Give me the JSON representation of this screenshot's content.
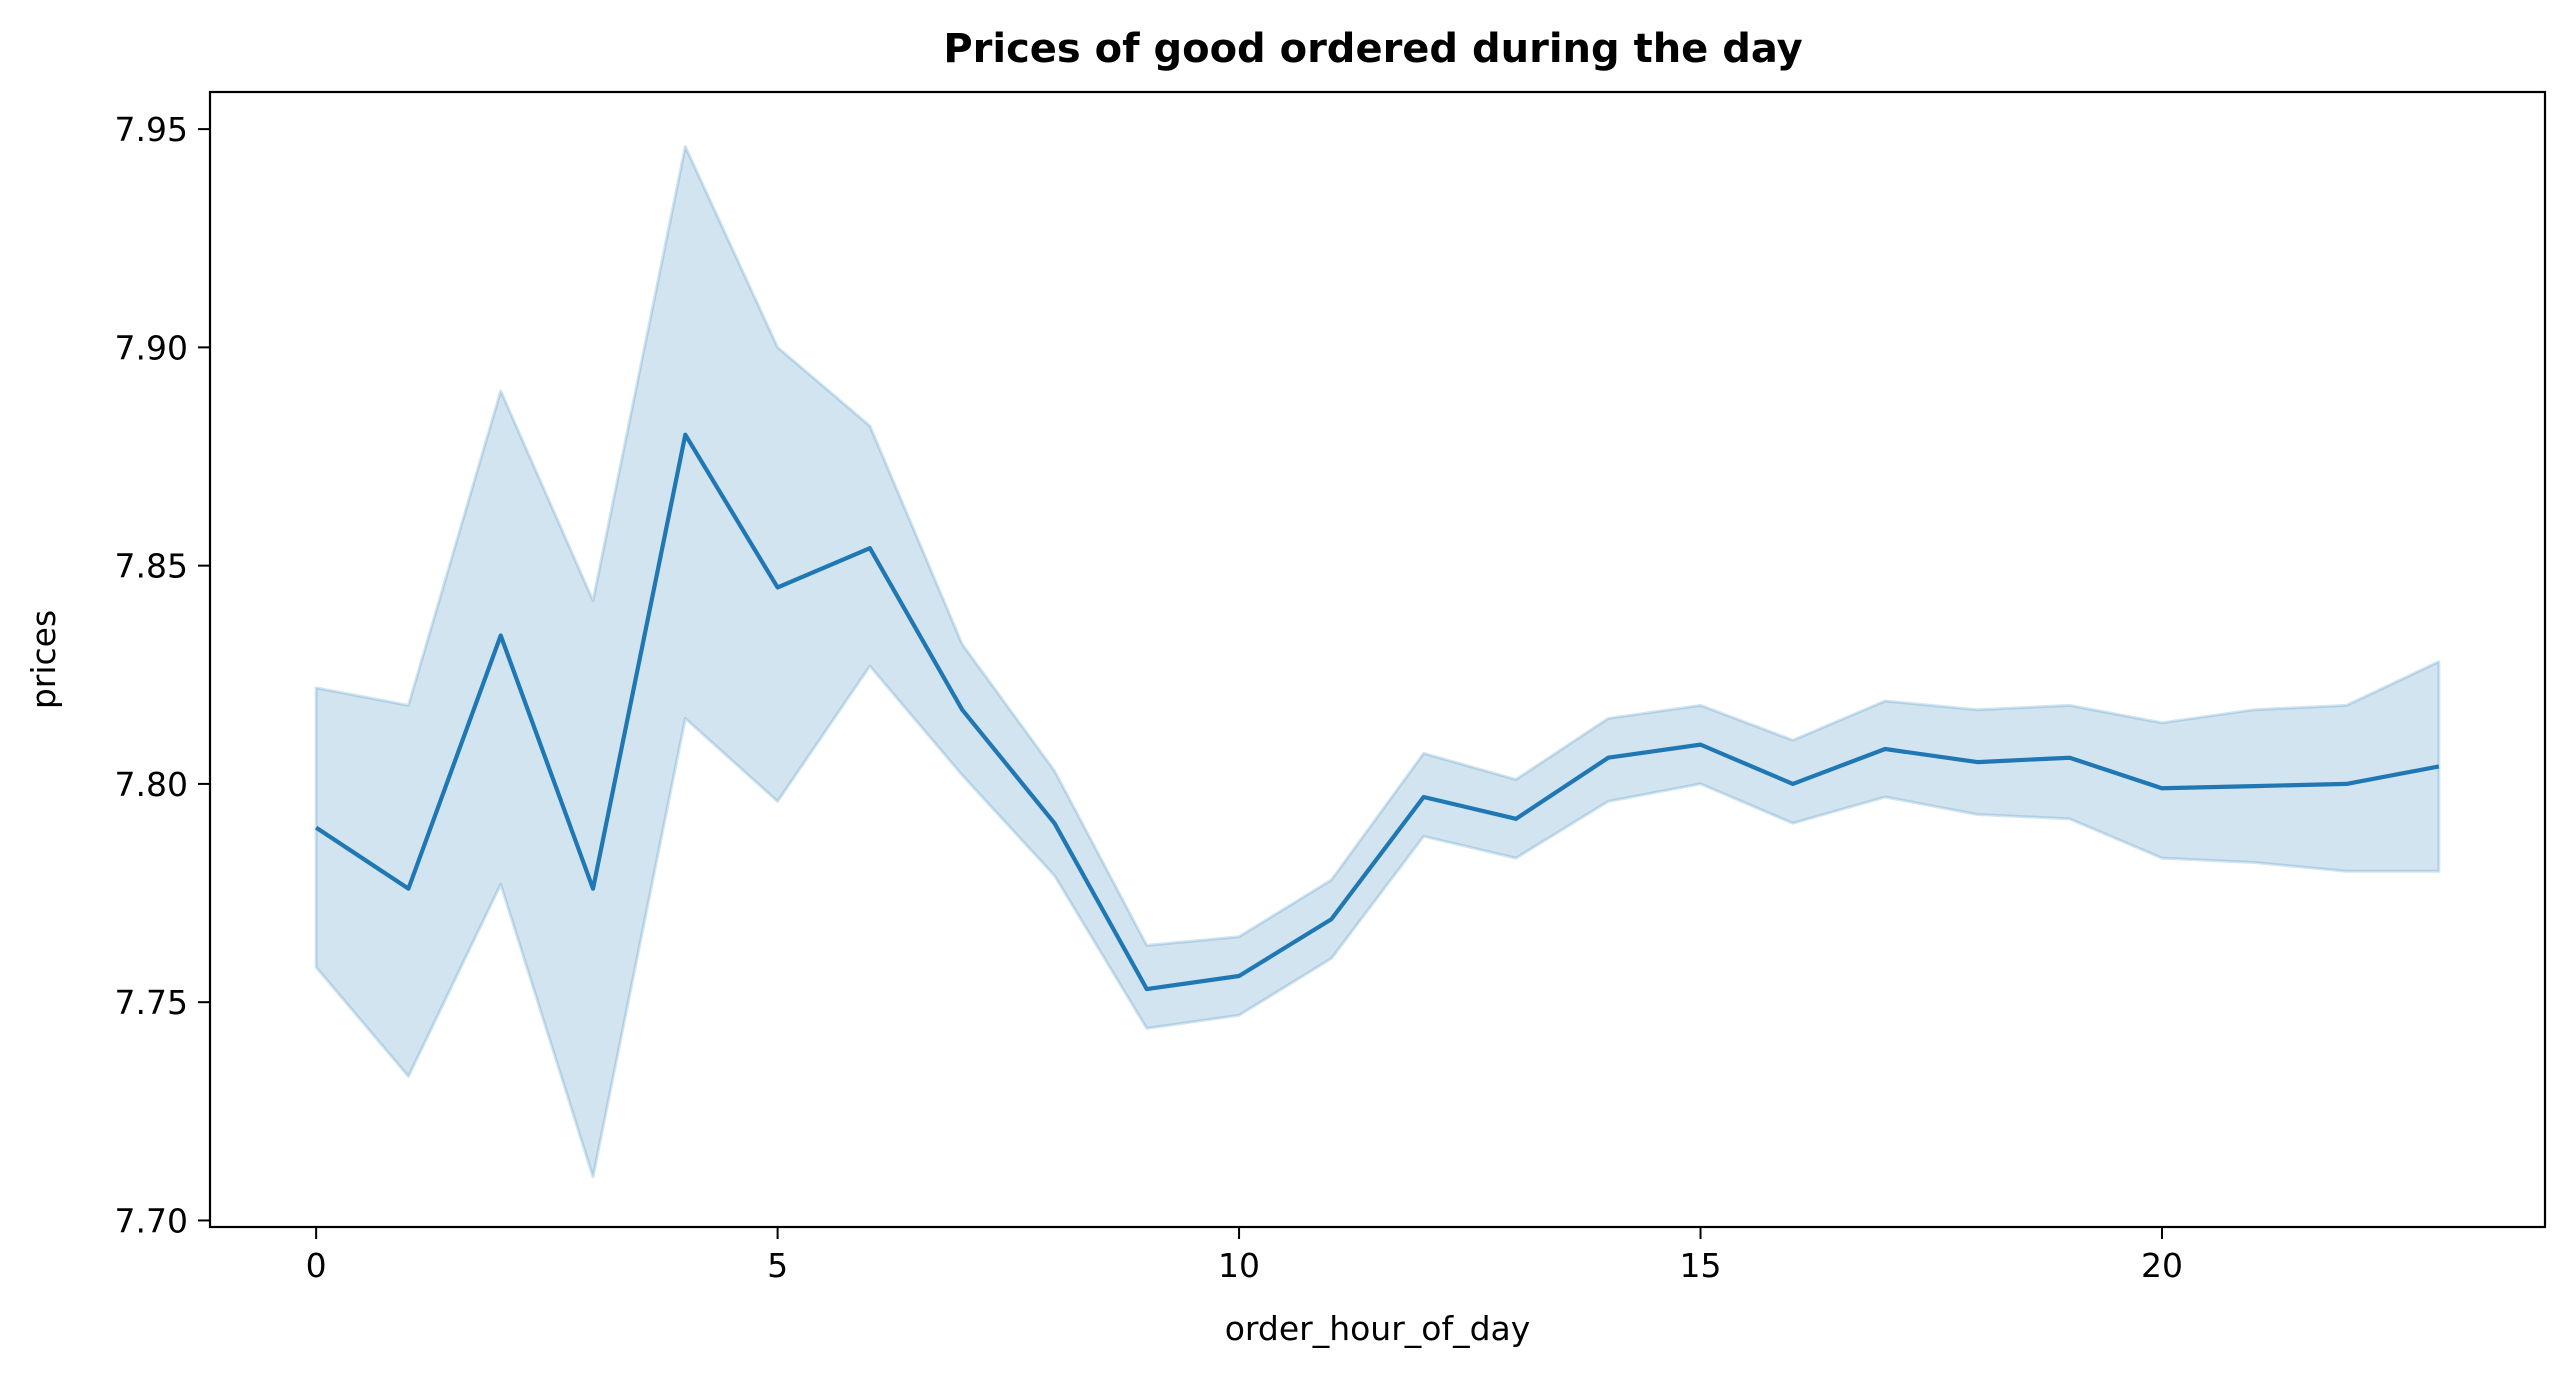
{
  "chart_data": {
    "type": "line",
    "title": "Prices of good ordered during the day",
    "xlabel": "order_hour_of_day",
    "ylabel": "prices",
    "x": [
      0,
      1,
      2,
      3,
      4,
      5,
      6,
      7,
      8,
      9,
      10,
      11,
      12,
      13,
      14,
      15,
      16,
      17,
      18,
      19,
      20,
      21,
      22,
      23
    ],
    "series": [
      {
        "values": [
          7.79,
          7.776,
          7.834,
          7.776,
          7.88,
          7.845,
          7.854,
          7.817,
          7.791,
          7.753,
          7.756,
          7.769,
          7.797,
          7.792,
          7.806,
          7.809,
          7.8,
          7.808,
          7.805,
          7.806,
          7.799,
          7.7995,
          7.8,
          7.804
        ],
        "ci_upper": [
          7.822,
          7.818,
          7.89,
          7.842,
          7.946,
          7.9,
          7.882,
          7.832,
          7.803,
          7.763,
          7.765,
          7.778,
          7.807,
          7.801,
          7.815,
          7.818,
          7.81,
          7.819,
          7.817,
          7.818,
          7.814,
          7.817,
          7.818,
          7.828
        ],
        "ci_lower": [
          7.758,
          7.733,
          7.777,
          7.71,
          7.815,
          7.796,
          7.827,
          7.802,
          7.779,
          7.744,
          7.747,
          7.76,
          7.788,
          7.783,
          7.796,
          7.8,
          7.791,
          7.797,
          7.793,
          7.792,
          7.783,
          7.782,
          7.78,
          7.78
        ]
      }
    ],
    "xticks": [
      0,
      5,
      10,
      15,
      20
    ],
    "xtick_labels": [
      "0",
      "5",
      "10",
      "15",
      "20"
    ],
    "yticks": [
      7.7,
      7.75,
      7.8,
      7.85,
      7.9,
      7.95
    ],
    "ytick_labels": [
      "7.70",
      "7.75",
      "7.80",
      "7.85",
      "7.90",
      "7.95"
    ],
    "xlim": [
      -1.15,
      24.15
    ],
    "ylim": [
      7.6985,
      7.9585
    ],
    "grid": false,
    "colors": {
      "line": "#1f77b4",
      "band": "#1f77b4",
      "axes": "#000000"
    }
  }
}
